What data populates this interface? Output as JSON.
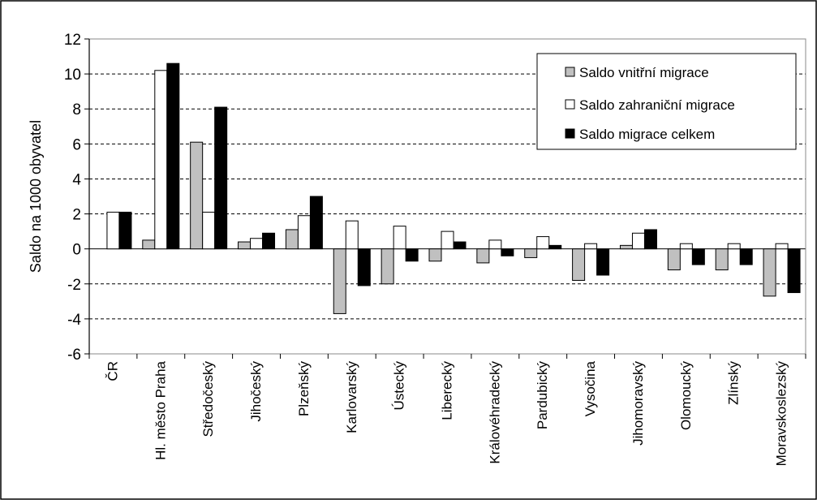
{
  "chart_data": {
    "type": "bar",
    "title": "",
    "xlabel": "",
    "ylabel": "Saldo na 1000 obyvatel",
    "ylim": [
      -6,
      12
    ],
    "yticks": [
      12,
      10,
      8,
      6,
      4,
      2,
      0,
      -2,
      -4,
      -6
    ],
    "grid": true,
    "legend_position": "top-right",
    "categories": [
      "ČR",
      "Hl. město Praha",
      "Středočeský",
      "Jihočeský",
      "Plzeňský",
      "Karlovarský",
      "Ústecký",
      "Liberecký",
      "Královéhradecký",
      "Pardubický",
      "Vysočina",
      "Jihomoravský",
      "Olomoucký",
      "Zlínský",
      "Moravskoslezský"
    ],
    "series": [
      {
        "name": "Saldo vnitřní migrace",
        "color": "#c0c0c0",
        "values": [
          0,
          0.5,
          6.1,
          0.4,
          1.1,
          -3.7,
          -2.0,
          -0.7,
          -0.8,
          -0.5,
          -1.8,
          0.2,
          -1.2,
          -1.2,
          -2.7
        ]
      },
      {
        "name": "Saldo zahraniční migrace",
        "color": "#ffffff",
        "values": [
          2.1,
          10.2,
          2.1,
          0.6,
          1.9,
          1.6,
          1.3,
          1.0,
          0.5,
          0.7,
          0.3,
          0.9,
          0.3,
          0.3,
          0.3
        ]
      },
      {
        "name": "Saldo migrace celkem",
        "color": "#000000",
        "values": [
          2.1,
          10.6,
          8.1,
          0.9,
          3.0,
          -2.1,
          -0.7,
          0.4,
          -0.4,
          0.2,
          -1.5,
          1.1,
          -0.9,
          -0.9,
          -2.5
        ]
      }
    ]
  }
}
